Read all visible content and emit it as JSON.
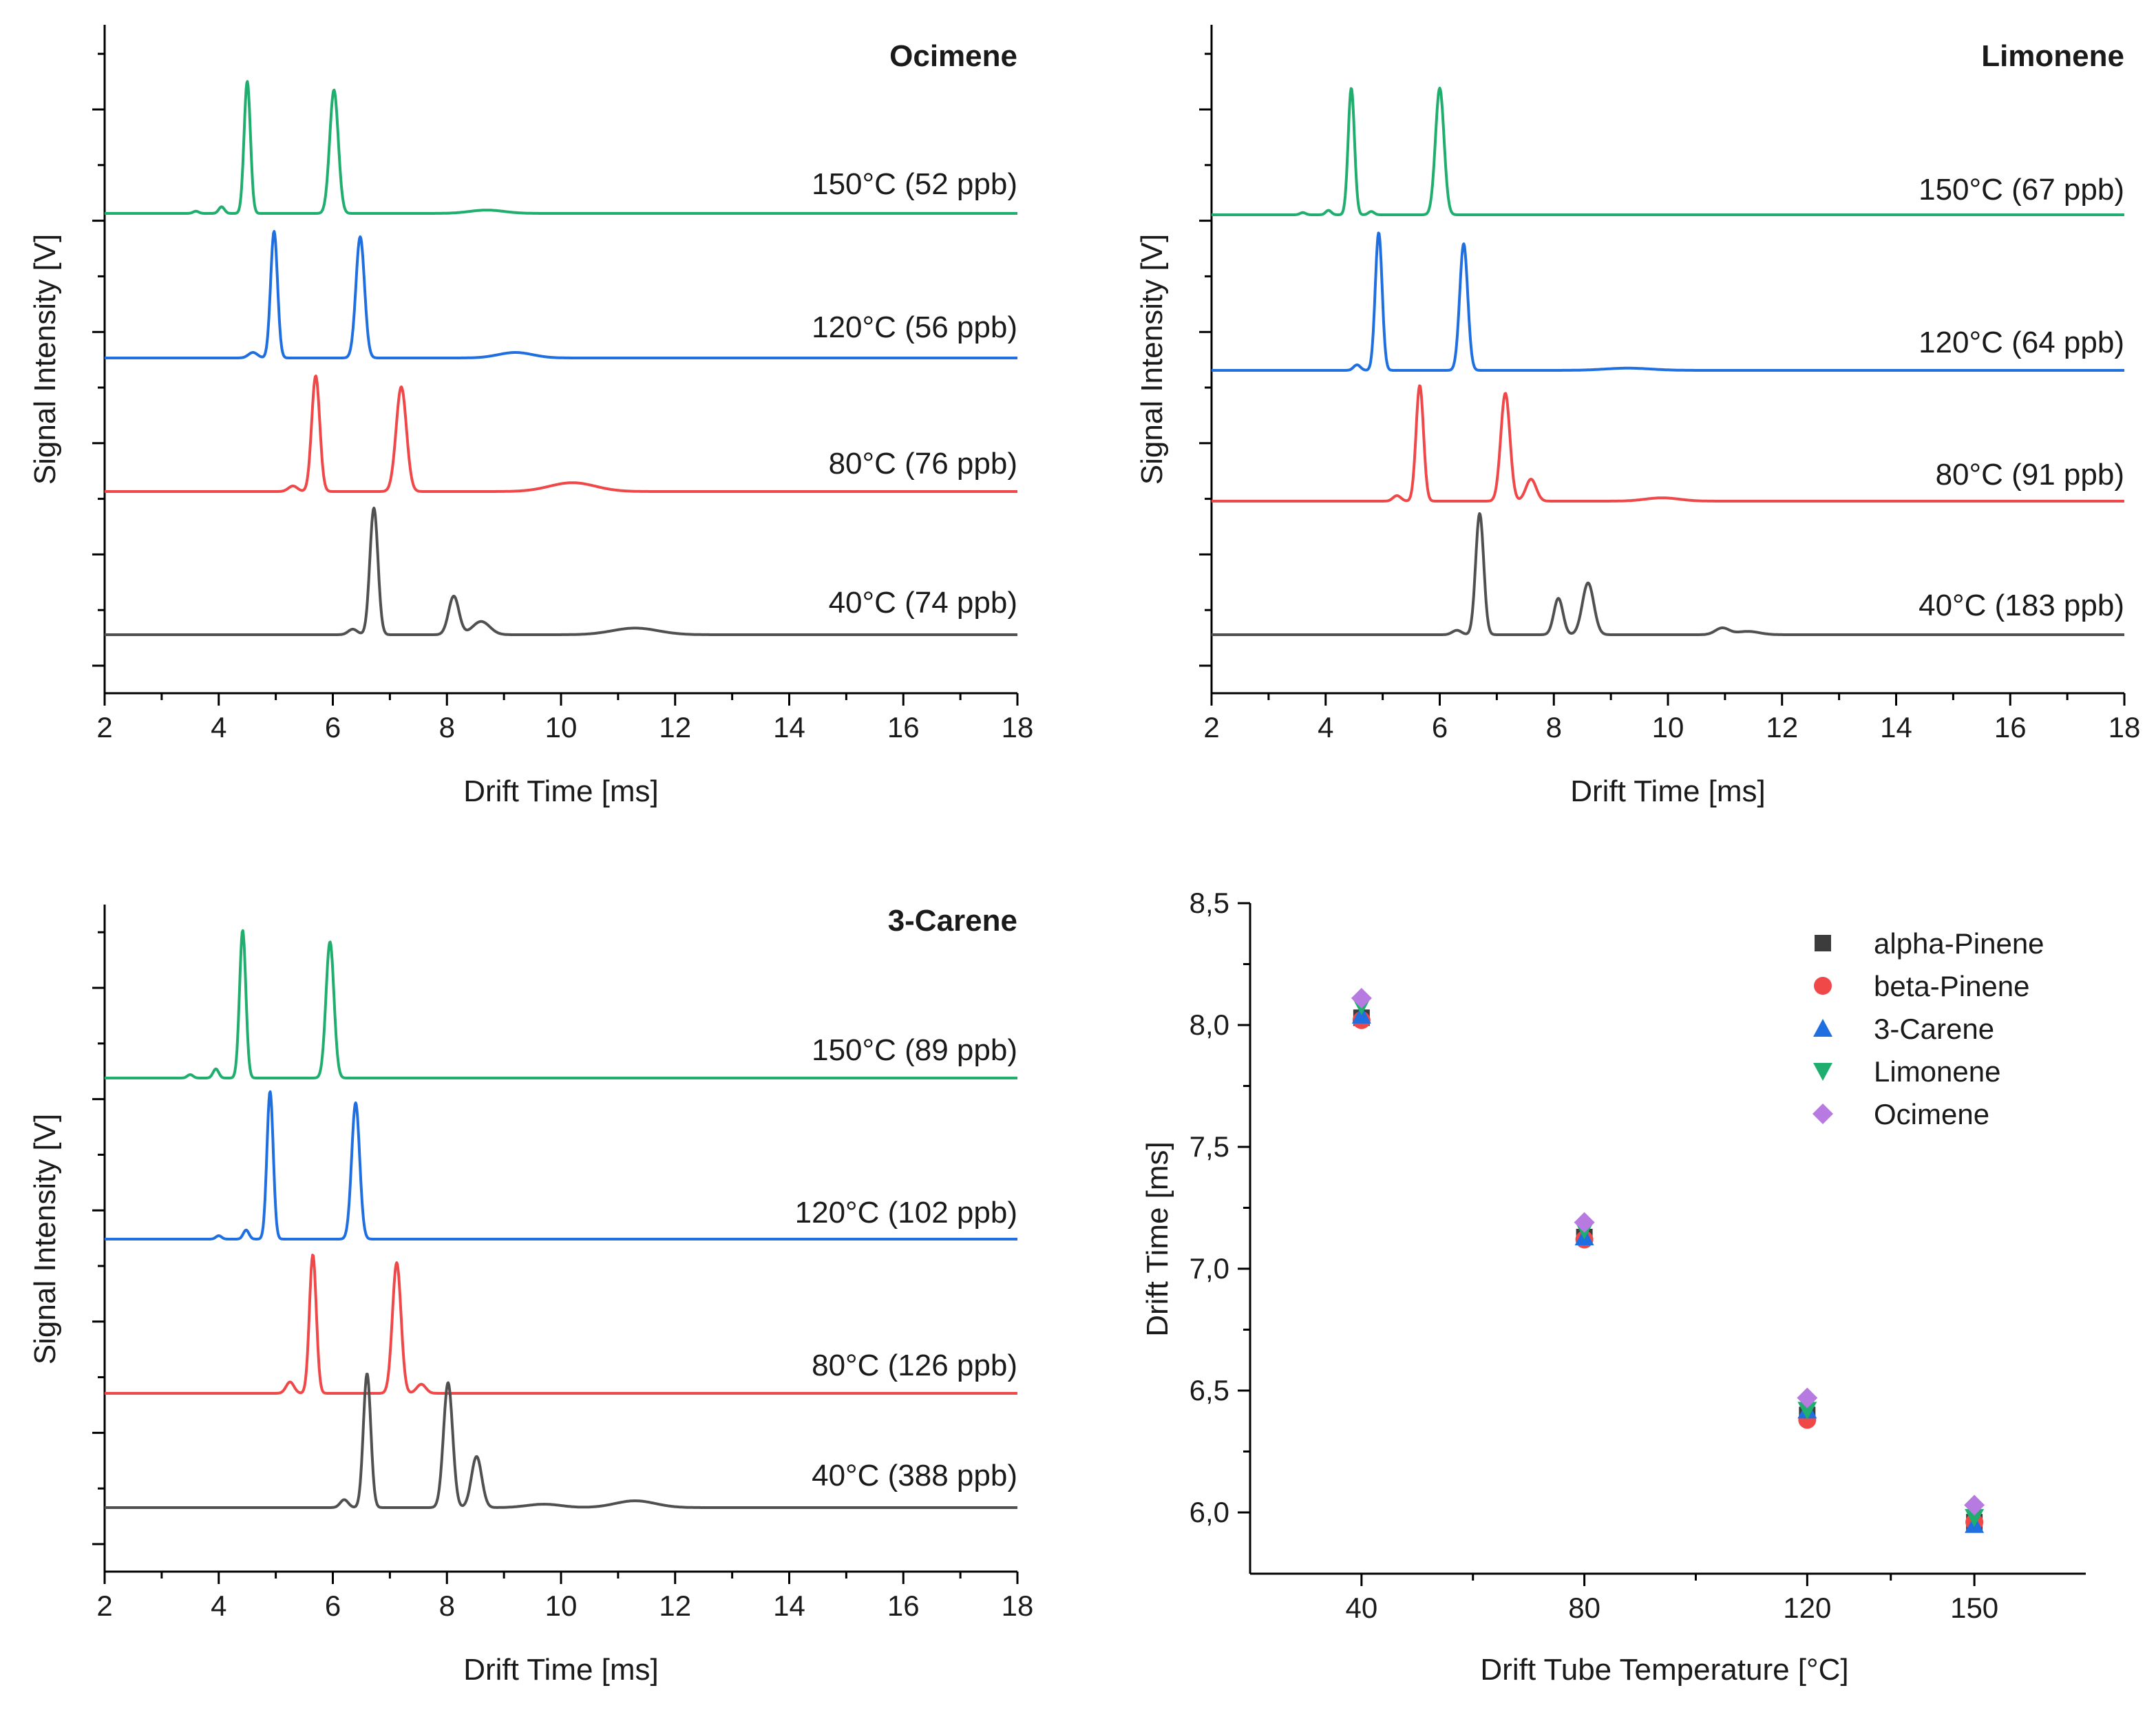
{
  "colors": {
    "t150": "#1fae6e",
    "t120": "#1f6fe0",
    "t80": "#f04848",
    "t40": "#505050",
    "alpha": "#3c3c3c",
    "beta": "#f04848",
    "carene": "#1f6fe0",
    "limonene": "#1fae6e",
    "ocimene": "#b77ae0",
    "axis": "#000000"
  },
  "chart_data": [
    {
      "type": "line",
      "title": "Ocimene",
      "xlabel": "Drift Time [ms]",
      "ylabel": "Signal Intensity [V]",
      "xlim": [
        2,
        18
      ],
      "xticks": [
        "2",
        "4",
        "6",
        "8",
        "10",
        "12",
        "14",
        "16",
        "18"
      ],
      "y_ticks_shown": false,
      "series": [
        {
          "name": "150°C (52 ppb)",
          "label": "150°C (52 ppb)",
          "color_key": "t150",
          "baseline": 3.8,
          "peaks": [
            {
              "x": 3.6,
              "h": 0.02,
              "w": 0.05
            },
            {
              "x": 4.05,
              "h": 0.06,
              "w": 0.05
            },
            {
              "x": 4.5,
              "h": 1.2,
              "w": 0.055
            },
            {
              "x": 6.02,
              "h": 1.12,
              "w": 0.075
            },
            {
              "x": 8.7,
              "h": 0.03,
              "w": 0.3
            }
          ]
        },
        {
          "name": "120°C (56 ppb)",
          "label": "120°C (56 ppb)",
          "color_key": "t120",
          "baseline": 2.5,
          "peaks": [
            {
              "x": 4.6,
              "h": 0.05,
              "w": 0.08
            },
            {
              "x": 4.97,
              "h": 1.15,
              "w": 0.06
            },
            {
              "x": 6.48,
              "h": 1.1,
              "w": 0.075
            },
            {
              "x": 9.2,
              "h": 0.05,
              "w": 0.3
            }
          ]
        },
        {
          "name": "80°C (76 ppb)",
          "label": "80°C (76 ppb)",
          "color_key": "t80",
          "baseline": 1.3,
          "peaks": [
            {
              "x": 5.3,
              "h": 0.05,
              "w": 0.08
            },
            {
              "x": 5.7,
              "h": 1.05,
              "w": 0.07
            },
            {
              "x": 7.2,
              "h": 0.95,
              "w": 0.09
            },
            {
              "x": 10.2,
              "h": 0.08,
              "w": 0.4
            }
          ]
        },
        {
          "name": "40°C (74 ppb)",
          "label": "40°C (74 ppb)",
          "color_key": "t40",
          "baseline": 0.05,
          "peaks": [
            {
              "x": 6.35,
              "h": 0.05,
              "w": 0.08
            },
            {
              "x": 6.72,
              "h": 1.15,
              "w": 0.07
            },
            {
              "x": 8.12,
              "h": 0.35,
              "w": 0.09
            },
            {
              "x": 8.6,
              "h": 0.12,
              "w": 0.15
            },
            {
              "x": 11.3,
              "h": 0.06,
              "w": 0.4
            }
          ]
        }
      ]
    },
    {
      "type": "line",
      "title": "Limonene",
      "xlabel": "Drift Time [ms]",
      "ylabel": "Signal Intensity [V]",
      "xlim": [
        2,
        18
      ],
      "xticks": [
        "2",
        "4",
        "6",
        "8",
        "10",
        "12",
        "14",
        "16",
        "18"
      ],
      "y_ticks_shown": false,
      "series": [
        {
          "name": "150°C (67 ppb)",
          "label": "150°C (67 ppb)",
          "color_key": "t150",
          "baseline": 3.8,
          "peaks": [
            {
              "x": 3.6,
              "h": 0.02,
              "w": 0.05
            },
            {
              "x": 4.05,
              "h": 0.04,
              "w": 0.05
            },
            {
              "x": 4.45,
              "h": 1.15,
              "w": 0.055
            },
            {
              "x": 4.8,
              "h": 0.03,
              "w": 0.05
            },
            {
              "x": 6.0,
              "h": 1.15,
              "w": 0.075
            }
          ]
        },
        {
          "name": "120°C (64 ppb)",
          "label": "120°C (64 ppb)",
          "color_key": "t120",
          "baseline": 2.4,
          "peaks": [
            {
              "x": 4.55,
              "h": 0.05,
              "w": 0.06
            },
            {
              "x": 4.93,
              "h": 1.25,
              "w": 0.06
            },
            {
              "x": 6.42,
              "h": 1.15,
              "w": 0.07
            },
            {
              "x": 9.3,
              "h": 0.02,
              "w": 0.4
            }
          ]
        },
        {
          "name": "80°C (91 ppb)",
          "label": "80°C (91 ppb)",
          "color_key": "t80",
          "baseline": 1.2,
          "peaks": [
            {
              "x": 5.25,
              "h": 0.05,
              "w": 0.07
            },
            {
              "x": 5.65,
              "h": 1.05,
              "w": 0.065
            },
            {
              "x": 7.15,
              "h": 0.98,
              "w": 0.08
            },
            {
              "x": 7.6,
              "h": 0.2,
              "w": 0.09
            },
            {
              "x": 9.9,
              "h": 0.03,
              "w": 0.3
            }
          ]
        },
        {
          "name": "40°C (183 ppb)",
          "label": "40°C (183 ppb)",
          "color_key": "t40",
          "baseline": 0.05,
          "peaks": [
            {
              "x": 6.3,
              "h": 0.04,
              "w": 0.08
            },
            {
              "x": 6.7,
              "h": 1.1,
              "w": 0.07
            },
            {
              "x": 8.08,
              "h": 0.33,
              "w": 0.08
            },
            {
              "x": 8.6,
              "h": 0.47,
              "w": 0.1
            },
            {
              "x": 10.95,
              "h": 0.06,
              "w": 0.12
            },
            {
              "x": 11.4,
              "h": 0.03,
              "w": 0.2
            }
          ]
        }
      ]
    },
    {
      "type": "line",
      "title": "3-Carene",
      "xlabel": "Drift Time [ms]",
      "ylabel": "Signal Intensity [V]",
      "xlim": [
        2,
        18
      ],
      "xticks": [
        "2",
        "4",
        "6",
        "8",
        "10",
        "12",
        "14",
        "16",
        "18"
      ],
      "y_ticks_shown": false,
      "series": [
        {
          "name": "150°C (89 ppb)",
          "label": "150°C (89 ppb)",
          "color_key": "t150",
          "baseline": 4.35,
          "peaks": [
            {
              "x": 3.5,
              "h": 0.03,
              "w": 0.05
            },
            {
              "x": 3.95,
              "h": 0.08,
              "w": 0.05
            },
            {
              "x": 4.42,
              "h": 1.3,
              "w": 0.055
            },
            {
              "x": 5.95,
              "h": 1.2,
              "w": 0.07
            }
          ]
        },
        {
          "name": "120°C (102 ppb)",
          "label": "120°C (102 ppb)",
          "color_key": "t120",
          "baseline": 2.9,
          "peaks": [
            {
              "x": 4.0,
              "h": 0.03,
              "w": 0.05
            },
            {
              "x": 4.48,
              "h": 0.08,
              "w": 0.05
            },
            {
              "x": 4.9,
              "h": 1.3,
              "w": 0.055
            },
            {
              "x": 6.4,
              "h": 1.2,
              "w": 0.07
            }
          ]
        },
        {
          "name": "80°C (126 ppb)",
          "label": "80°C (126 ppb)",
          "color_key": "t80",
          "baseline": 1.5,
          "peaks": [
            {
              "x": 5.25,
              "h": 0.1,
              "w": 0.07
            },
            {
              "x": 5.65,
              "h": 1.22,
              "w": 0.06
            },
            {
              "x": 7.12,
              "h": 1.15,
              "w": 0.075
            },
            {
              "x": 7.55,
              "h": 0.08,
              "w": 0.08
            }
          ]
        },
        {
          "name": "40°C (388 ppb)",
          "label": "40°C (388 ppb)",
          "color_key": "t40",
          "baseline": 0.05,
          "peaks": [
            {
              "x": 6.2,
              "h": 0.07,
              "w": 0.07
            },
            {
              "x": 6.6,
              "h": 1.18,
              "w": 0.065
            },
            {
              "x": 8.02,
              "h": 1.1,
              "w": 0.08
            },
            {
              "x": 8.52,
              "h": 0.45,
              "w": 0.09
            },
            {
              "x": 9.7,
              "h": 0.03,
              "w": 0.3
            },
            {
              "x": 11.3,
              "h": 0.06,
              "w": 0.35
            }
          ]
        }
      ]
    },
    {
      "type": "scatter",
      "title": "",
      "xlabel": "Drift Tube Temperature [°C]",
      "ylabel": "Drift Time [ms]",
      "xlim": [
        20,
        170
      ],
      "ylim": [
        5.75,
        8.5
      ],
      "xticks": [
        40,
        80,
        120,
        150
      ],
      "xtick_labels": [
        "40",
        "80",
        "120",
        "150"
      ],
      "yticks": [
        6.0,
        6.5,
        7.0,
        7.5,
        8.0,
        8.5
      ],
      "ytick_labels": [
        "6,0",
        "6,5",
        "7,0",
        "7,5",
        "8,0",
        "8,5"
      ],
      "legend_position": "top-right",
      "series": [
        {
          "name": "alpha-Pinene",
          "marker": "square",
          "color_key": "alpha",
          "x": [
            40,
            80,
            120,
            150
          ],
          "y": [
            8.03,
            7.13,
            6.4,
            5.96
          ]
        },
        {
          "name": "beta-Pinene",
          "marker": "circle",
          "color_key": "beta",
          "x": [
            40,
            80,
            120,
            150
          ],
          "y": [
            8.02,
            7.12,
            6.38,
            5.96
          ]
        },
        {
          "name": "3-Carene",
          "marker": "triangle-up",
          "color_key": "carene",
          "x": [
            40,
            80,
            120,
            150
          ],
          "y": [
            8.04,
            7.13,
            6.42,
            5.95
          ]
        },
        {
          "name": "Limonene",
          "marker": "triangle-down",
          "color_key": "limonene",
          "x": [
            40,
            80,
            120,
            150
          ],
          "y": [
            8.08,
            7.16,
            6.42,
            5.98
          ]
        },
        {
          "name": "Ocimene",
          "marker": "diamond",
          "color_key": "ocimene",
          "x": [
            40,
            80,
            120,
            150
          ],
          "y": [
            8.11,
            7.19,
            6.47,
            6.03
          ]
        }
      ]
    }
  ]
}
